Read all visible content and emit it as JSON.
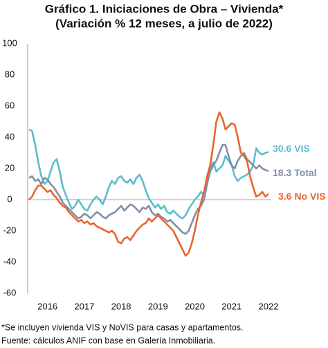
{
  "chart_data": {
    "type": "line",
    "title": "Gráfico 1. Iniciaciones de Obra – Vivienda*",
    "subtitle": "(Variación % 12 meses, a julio de 2022)",
    "categories": [
      null,
      null,
      null,
      null,
      null,
      null,
      "2016",
      null,
      null,
      null,
      null,
      null,
      null,
      null,
      null,
      null,
      null,
      null,
      "2017",
      null,
      null,
      null,
      null,
      null,
      null,
      null,
      null,
      null,
      null,
      null,
      "2018",
      null,
      null,
      null,
      null,
      null,
      null,
      null,
      null,
      null,
      null,
      null,
      "2019",
      null,
      null,
      null,
      null,
      null,
      null,
      null,
      null,
      null,
      null,
      null,
      "2020",
      null,
      null,
      null,
      null,
      null,
      null,
      null,
      null,
      null,
      null,
      null,
      "2021",
      null,
      null,
      null,
      null,
      null,
      null,
      null,
      null,
      null,
      null,
      null,
      "2022"
    ],
    "series": [
      {
        "name": "VIS",
        "color": "#5bbccc",
        "values": [
          45,
          44,
          35,
          24,
          15,
          10,
          12,
          18,
          24,
          26,
          18,
          8,
          3,
          -2,
          -6,
          -4,
          0,
          -3,
          -6,
          -7,
          -3,
          0,
          2,
          0,
          -3,
          2,
          8,
          12,
          10,
          14,
          15,
          12,
          11,
          13,
          10,
          14,
          16,
          12,
          6,
          1,
          -2,
          -5,
          -3,
          -6,
          -4,
          -8,
          -9,
          -7,
          -9,
          -11,
          -12,
          -10,
          -6,
          -3,
          0,
          2,
          5,
          3,
          10,
          20,
          24,
          18,
          20,
          22,
          28,
          25,
          22,
          15,
          12,
          14,
          15,
          16,
          18,
          22,
          33,
          30,
          29,
          30,
          30.6
        ]
      },
      {
        "name": "Total",
        "color": "#7f8fa6",
        "values": [
          14,
          15,
          12,
          13,
          10,
          14,
          13,
          10,
          8,
          5,
          2,
          -2,
          -4,
          -6,
          -8,
          -10,
          -12,
          -11,
          -9,
          -10,
          -12,
          -10,
          -8,
          -9,
          -11,
          -12,
          -10,
          -9,
          -8,
          -6,
          -4,
          -7,
          -5,
          -3,
          -4,
          -6,
          -8,
          -5,
          -6,
          -4,
          -8,
          -10,
          -9,
          -11,
          -12,
          -14,
          -13,
          -15,
          -17,
          -19,
          -21,
          -22,
          -20,
          -15,
          -10,
          -6,
          -4,
          0,
          10,
          18,
          22,
          25,
          30,
          35,
          35,
          28,
          22,
          20,
          25,
          28,
          30,
          26,
          24,
          22,
          20,
          22,
          20,
          19,
          18.3
        ]
      },
      {
        "name": "No VIS",
        "color": "#e8642c",
        "values": [
          0,
          2,
          6,
          9,
          9,
          7,
          5,
          6,
          3,
          1,
          -2,
          -4,
          -5,
          -8,
          -10,
          -12,
          -14,
          -13,
          -15,
          -14,
          -16,
          -15,
          -17,
          -18,
          -19,
          -20,
          -21,
          -20,
          -22,
          -27,
          -28,
          -25,
          -24,
          -26,
          -23,
          -20,
          -18,
          -16,
          -15,
          -12,
          -14,
          -12,
          -10,
          -12,
          -14,
          -16,
          -18,
          -20,
          -24,
          -28,
          -32,
          -36,
          -34,
          -28,
          -20,
          -10,
          -2,
          5,
          15,
          22,
          35,
          50,
          56,
          52,
          45,
          47,
          49,
          48,
          40,
          30,
          28,
          25,
          15,
          8,
          2,
          3,
          5,
          2,
          3.6
        ]
      }
    ],
    "ylim": [
      -60,
      100
    ],
    "yticks": [
      -60,
      -40,
      -20,
      0,
      20,
      40,
      60,
      80,
      100
    ],
    "notes": [
      "*Se incluyen vivienda VIS y NoVIS para casas y apartamentos.",
      "Fuente: cálculos ANIF con base en Galería Inmobiliaria."
    ]
  }
}
